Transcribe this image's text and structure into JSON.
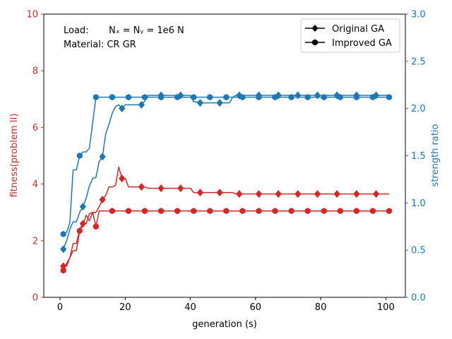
{
  "chart_data": {
    "type": "line",
    "xlabel": "generation (s)",
    "ylabel_left": "fitness(problem II)",
    "ylabel_right": "strength ratio",
    "xlim": [
      -5,
      106
    ],
    "ylim_left": [
      0,
      10
    ],
    "ylim_right": [
      0,
      3.0
    ],
    "xticks": [
      0,
      20,
      40,
      60,
      80,
      100
    ],
    "yticks_left": [
      0,
      2,
      4,
      6,
      8,
      10
    ],
    "yticks_right": [
      0.0,
      0.5,
      1.0,
      1.5,
      2.0,
      2.5,
      3.0
    ],
    "left_color": "#d62728",
    "right_color": "#1f77b4",
    "annotations": {
      "load_label": "Load:",
      "load_value": "Nₓ = Nᵧ = 1e6 N",
      "material": "Material: CR GR"
    },
    "legend": [
      {
        "label": "Original GA",
        "marker": "diamond"
      },
      {
        "label": "Improved GA",
        "marker": "hexagon"
      }
    ],
    "legend_position": "top-right",
    "series": [
      {
        "axis": "left",
        "style": "original",
        "marker": "diamond",
        "color": "#d62728",
        "x": [
          1,
          2,
          3,
          4,
          5,
          6,
          7,
          8,
          9,
          10,
          11,
          12,
          13,
          14,
          15,
          16,
          17,
          18,
          19,
          20,
          21,
          22,
          23,
          24,
          25,
          26,
          27,
          28,
          29,
          30,
          31,
          32,
          33,
          34,
          35,
          36,
          37,
          38,
          39,
          40,
          41,
          42,
          43,
          44,
          45,
          46,
          47,
          48,
          49,
          50,
          51,
          52,
          53,
          54,
          55,
          56,
          57,
          58,
          59,
          60,
          61,
          62,
          63,
          64,
          65,
          66,
          67,
          68,
          69,
          70,
          71,
          72,
          73,
          74,
          75,
          76,
          77,
          78,
          79,
          80,
          81,
          82,
          83,
          84,
          85,
          86,
          87,
          88,
          89,
          90,
          91,
          92,
          93,
          94,
          95,
          96,
          97,
          98,
          99,
          100,
          101
        ],
        "y": [
          1.1,
          1.1,
          1.4,
          1.9,
          1.9,
          2.4,
          2.6,
          2.6,
          2.95,
          3.0,
          3.0,
          3.2,
          3.45,
          3.6,
          3.9,
          3.9,
          3.95,
          4.6,
          4.2,
          4.2,
          3.9,
          3.9,
          3.9,
          3.9,
          3.9,
          3.9,
          3.85,
          3.85,
          3.85,
          3.85,
          3.85,
          3.85,
          3.85,
          3.85,
          3.85,
          3.85,
          3.85,
          3.85,
          3.85,
          3.85,
          3.7,
          3.7,
          3.7,
          3.7,
          3.7,
          3.7,
          3.7,
          3.7,
          3.7,
          3.7,
          3.7,
          3.7,
          3.7,
          3.65,
          3.65,
          3.65,
          3.65,
          3.65,
          3.65,
          3.65,
          3.65,
          3.65,
          3.65,
          3.65,
          3.65,
          3.65,
          3.65,
          3.65,
          3.65,
          3.65,
          3.65,
          3.65,
          3.65,
          3.65,
          3.65,
          3.65,
          3.65,
          3.65,
          3.65,
          3.65,
          3.65,
          3.65,
          3.65,
          3.65,
          3.65,
          3.65,
          3.65,
          3.65,
          3.65,
          3.65,
          3.65,
          3.65,
          3.65,
          3.65,
          3.65,
          3.65,
          3.65,
          3.65,
          3.65,
          3.65,
          3.65
        ],
        "marker_every": 6
      },
      {
        "axis": "left",
        "style": "improved",
        "marker": "hexagon",
        "color": "#d62728",
        "x": [
          1,
          2,
          3,
          4,
          5,
          6,
          7,
          8,
          9,
          10,
          11,
          12,
          13,
          14,
          15,
          16,
          17,
          18,
          19,
          20,
          21,
          22,
          23,
          24,
          25,
          26,
          27,
          28,
          29,
          30,
          31,
          32,
          33,
          34,
          35,
          36,
          37,
          38,
          39,
          40,
          41,
          42,
          43,
          44,
          45,
          46,
          47,
          48,
          49,
          50,
          51,
          52,
          53,
          54,
          55,
          56,
          57,
          58,
          59,
          60,
          61,
          62,
          63,
          64,
          65,
          66,
          67,
          68,
          69,
          70,
          71,
          72,
          73,
          74,
          75,
          76,
          77,
          78,
          79,
          80,
          81,
          82,
          83,
          84,
          85,
          86,
          87,
          88,
          89,
          90,
          91,
          92,
          93,
          94,
          95,
          96,
          97,
          98,
          99,
          100,
          101
        ],
        "y": [
          0.95,
          1.2,
          1.4,
          1.65,
          1.65,
          2.35,
          2.55,
          2.9,
          2.7,
          3.0,
          2.5,
          3.05,
          3.05,
          3.05,
          3.05,
          3.05,
          3.05,
          3.05,
          3.05,
          3.05,
          3.05,
          3.05,
          3.05,
          3.05,
          3.05,
          3.05,
          3.05,
          3.05,
          3.05,
          3.05,
          3.05,
          3.05,
          3.05,
          3.05,
          3.05,
          3.05,
          3.05,
          3.05,
          3.05,
          3.05,
          3.05,
          3.05,
          3.05,
          3.05,
          3.05,
          3.05,
          3.05,
          3.05,
          3.05,
          3.05,
          3.05,
          3.05,
          3.05,
          3.05,
          3.05,
          3.05,
          3.05,
          3.05,
          3.05,
          3.05,
          3.05,
          3.05,
          3.05,
          3.05,
          3.05,
          3.05,
          3.05,
          3.05,
          3.05,
          3.05,
          3.05,
          3.05,
          3.05,
          3.05,
          3.05,
          3.05,
          3.05,
          3.05,
          3.05,
          3.05,
          3.05,
          3.05,
          3.05,
          3.05,
          3.05,
          3.05,
          3.05,
          3.05,
          3.05,
          3.05,
          3.05,
          3.05,
          3.05,
          3.05,
          3.05,
          3.05,
          3.05,
          3.05,
          3.05,
          3.05,
          3.05
        ],
        "marker_every": 5
      },
      {
        "axis": "right",
        "style": "original",
        "marker": "diamond",
        "color": "#1f77b4",
        "x": [
          1,
          2,
          3,
          4,
          5,
          6,
          7,
          8,
          9,
          10,
          11,
          12,
          13,
          14,
          15,
          16,
          17,
          18,
          19,
          20,
          21,
          22,
          23,
          24,
          25,
          26,
          27,
          28,
          29,
          30,
          31,
          32,
          33,
          34,
          35,
          36,
          37,
          38,
          39,
          40,
          41,
          42,
          43,
          44,
          45,
          46,
          47,
          48,
          49,
          50,
          51,
          52,
          53,
          54,
          55,
          56,
          57,
          58,
          59,
          60,
          61,
          62,
          63,
          64,
          65,
          66,
          67,
          68,
          69,
          70,
          71,
          72,
          73,
          74,
          75,
          76,
          77,
          78,
          79,
          80,
          81,
          82,
          83,
          84,
          85,
          86,
          87,
          88,
          89,
          90,
          91,
          92,
          93,
          94,
          95,
          96,
          97,
          98,
          99,
          100,
          101
        ],
        "y": [
          0.51,
          0.6,
          0.72,
          0.8,
          0.8,
          0.9,
          0.96,
          1.05,
          1.18,
          1.26,
          1.27,
          1.44,
          1.49,
          1.73,
          1.83,
          1.95,
          2.02,
          2.04,
          2.0,
          2.04,
          2.04,
          2.04,
          2.04,
          2.04,
          2.04,
          2.08,
          2.14,
          2.14,
          2.14,
          2.14,
          2.14,
          2.14,
          2.14,
          2.14,
          2.14,
          2.14,
          2.14,
          2.14,
          2.14,
          2.14,
          2.07,
          2.07,
          2.06,
          2.06,
          2.06,
          2.06,
          2.06,
          2.06,
          2.06,
          2.06,
          2.06,
          2.06,
          2.12,
          2.14,
          2.14,
          2.14,
          2.14,
          2.14,
          2.14,
          2.14,
          2.14,
          2.14,
          2.14,
          2.14,
          2.14,
          2.14,
          2.14,
          2.14,
          2.14,
          2.14,
          2.14,
          2.14,
          2.14,
          2.14,
          2.14,
          2.14,
          2.14,
          2.14,
          2.14,
          2.14,
          2.14,
          2.14,
          2.14,
          2.14,
          2.14,
          2.14,
          2.14,
          2.14,
          2.14,
          2.14,
          2.14,
          2.14,
          2.14,
          2.14,
          2.14,
          2.14,
          2.14,
          2.14,
          2.14,
          2.14,
          2.14
        ],
        "marker_every": 6
      },
      {
        "axis": "right",
        "style": "improved",
        "marker": "hexagon",
        "color": "#1f77b4",
        "x": [
          1,
          2,
          3,
          4,
          5,
          6,
          7,
          8,
          9,
          10,
          11,
          12,
          13,
          14,
          15,
          16,
          17,
          18,
          19,
          20,
          21,
          22,
          23,
          24,
          25,
          26,
          27,
          28,
          29,
          30,
          31,
          32,
          33,
          34,
          35,
          36,
          37,
          38,
          39,
          40,
          41,
          42,
          43,
          44,
          45,
          46,
          47,
          48,
          49,
          50,
          51,
          52,
          53,
          54,
          55,
          56,
          57,
          58,
          59,
          60,
          61,
          62,
          63,
          64,
          65,
          66,
          67,
          68,
          69,
          70,
          71,
          72,
          73,
          74,
          75,
          76,
          77,
          78,
          79,
          80,
          81,
          82,
          83,
          84,
          85,
          86,
          87,
          88,
          89,
          90,
          91,
          92,
          93,
          94,
          95,
          96,
          97,
          98,
          99,
          100,
          101
        ],
        "y": [
          0.67,
          0.69,
          0.79,
          1.35,
          1.35,
          1.5,
          1.54,
          1.54,
          1.58,
          1.85,
          2.12,
          2.12,
          2.12,
          2.12,
          2.12,
          2.12,
          2.12,
          2.12,
          2.12,
          2.12,
          2.12,
          2.12,
          2.12,
          2.12,
          2.12,
          2.12,
          2.12,
          2.12,
          2.12,
          2.12,
          2.12,
          2.12,
          2.12,
          2.12,
          2.12,
          2.12,
          2.12,
          2.12,
          2.12,
          2.12,
          2.12,
          2.12,
          2.12,
          2.12,
          2.12,
          2.12,
          2.12,
          2.12,
          2.12,
          2.12,
          2.12,
          2.12,
          2.12,
          2.12,
          2.12,
          2.12,
          2.12,
          2.12,
          2.12,
          2.12,
          2.12,
          2.12,
          2.12,
          2.12,
          2.12,
          2.12,
          2.12,
          2.12,
          2.12,
          2.12,
          2.12,
          2.12,
          2.12,
          2.12,
          2.12,
          2.12,
          2.12,
          2.12,
          2.12,
          2.12,
          2.12,
          2.12,
          2.12,
          2.12,
          2.12,
          2.12,
          2.12,
          2.12,
          2.12,
          2.12,
          2.12,
          2.12,
          2.12,
          2.12,
          2.12,
          2.12,
          2.12,
          2.12,
          2.12,
          2.12,
          2.12
        ],
        "marker_every": 5
      }
    ]
  }
}
